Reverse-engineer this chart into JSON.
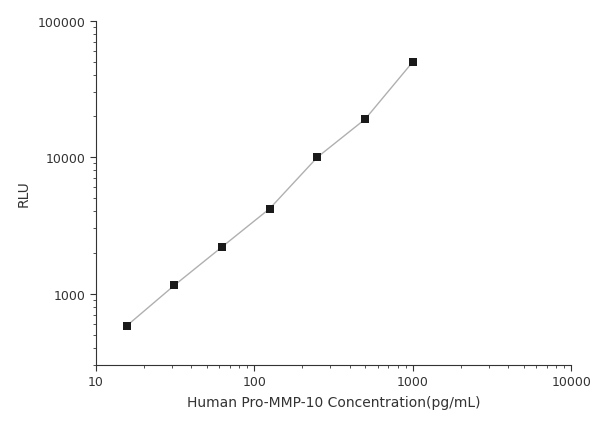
{
  "x_values": [
    15.625,
    31.25,
    62.5,
    125,
    250,
    500,
    1000
  ],
  "y_values": [
    580,
    1150,
    2200,
    4200,
    10000,
    19000,
    50000
  ],
  "x_label": "Human Pro-MMP-10 Concentration(pg/mL)",
  "y_label": "RLU",
  "x_lim": [
    10,
    10000
  ],
  "y_lim": [
    300,
    100000
  ],
  "x_ticks": [
    10,
    100,
    1000,
    10000
  ],
  "y_ticks": [
    1000,
    10000,
    100000
  ],
  "line_color": "#b0b0b0",
  "marker_color": "#1a1a1a",
  "marker_style": "s",
  "marker_size": 6,
  "background_color": "#ffffff",
  "xlabel_fontsize": 10,
  "ylabel_fontsize": 10,
  "tick_labelsize": 9
}
